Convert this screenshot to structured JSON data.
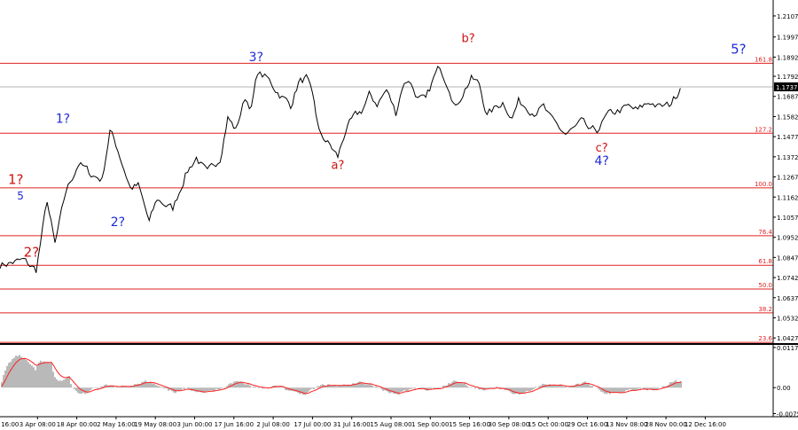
{
  "chart_data": [
    {
      "type": "line",
      "instrument": "",
      "title": "",
      "ylim": [
        1.04,
        1.219
      ],
      "y_ticks": [
        "1.2107",
        "1.1997",
        "1.1892",
        "1.1792",
        "1.1687",
        "1.1582",
        "1.1477",
        "1.1372",
        "1.1267",
        "1.1162",
        "1.1057",
        "1.0952",
        "1.0847",
        "1.0742",
        "1.0637",
        "1.0532",
        "1.0427"
      ],
      "current_price_label": "1.1737",
      "current_price": 1.1737,
      "x_labels": [
        "27 Mar 16:00",
        "3 Apr 08:00",
        "18 Apr 00:00",
        "2 May 16:00",
        "19 May 08:00",
        "3 Jun 00:00",
        "17 Jun 16:00",
        "2 Jul 08:00",
        "17 Jul 00:00",
        "31 Jul 16:00",
        "15 Aug 08:00",
        "1 Sep 00:00",
        "15 Sep 16:00",
        "30 Sep 08:00",
        "15 Oct 00:00",
        "29 Oct 16:00",
        "13 Nov 08:00",
        "28 Nov 00:00",
        "12 Dec 16:00"
      ],
      "fib_levels": [
        {
          "label": "161.8",
          "value": 1.186
        },
        {
          "label": "127.2",
          "value": 1.1495
        },
        {
          "label": "100.0",
          "value": 1.121
        },
        {
          "label": "76.4",
          "value": 1.096
        },
        {
          "label": "61.8",
          "value": 1.0806
        },
        {
          "label": "50.0",
          "value": 1.0682
        },
        {
          "label": "38.2",
          "value": 1.0558
        },
        {
          "label": "23.6",
          "value": 1.0404
        }
      ],
      "price_path": [
        [
          0,
          1.081
        ],
        [
          1.5,
          1.083
        ],
        [
          2.3,
          1.078
        ],
        [
          3,
          1.114
        ],
        [
          3.5,
          1.091
        ],
        [
          4.2,
          1.119
        ],
        [
          5,
          1.134
        ],
        [
          5.8,
          1.128
        ],
        [
          6.5,
          1.1255
        ],
        [
          7,
          1.151
        ],
        [
          7.5,
          1.141
        ],
        [
          8.3,
          1.121
        ],
        [
          8.8,
          1.122
        ],
        [
          9.5,
          1.103
        ],
        [
          10,
          1.115
        ],
        [
          11,
          1.11
        ],
        [
          11.8,
          1.128
        ],
        [
          12.5,
          1.137
        ],
        [
          13.2,
          1.128
        ],
        [
          14,
          1.137
        ],
        [
          14.5,
          1.158
        ],
        [
          15,
          1.151
        ],
        [
          15.6,
          1.168
        ],
        [
          16,
          1.163
        ],
        [
          16.4,
          1.181
        ],
        [
          17,
          1.178
        ],
        [
          17.8,
          1.17
        ],
        [
          18.5,
          1.164
        ],
        [
          19,
          1.176
        ],
        [
          19.5,
          1.178
        ],
        [
          20,
          1.165
        ],
        [
          20.3,
          1.15
        ],
        [
          21,
          1.143
        ],
        [
          21.5,
          1.137
        ],
        [
          22,
          1.151
        ],
        [
          22.5,
          1.157
        ],
        [
          23,
          1.161
        ],
        [
          23.5,
          1.169
        ],
        [
          24,
          1.165
        ],
        [
          24.6,
          1.172
        ],
        [
          25.2,
          1.16
        ],
        [
          25.6,
          1.174
        ],
        [
          26,
          1.178
        ],
        [
          26.6,
          1.168
        ],
        [
          27.1,
          1.166
        ],
        [
          27.6,
          1.178
        ],
        [
          28,
          1.184
        ],
        [
          28.6,
          1.174
        ],
        [
          29,
          1.163
        ],
        [
          29.6,
          1.173
        ],
        [
          30,
          1.178
        ],
        [
          30.5,
          1.175
        ],
        [
          31,
          1.159
        ],
        [
          31.6,
          1.163
        ],
        [
          32,
          1.166
        ],
        [
          32.6,
          1.158
        ],
        [
          33,
          1.166
        ],
        [
          33.6,
          1.163
        ],
        [
          34,
          1.161
        ],
        [
          34.6,
          1.163
        ],
        [
          35,
          1.157
        ],
        [
          35.6,
          1.152
        ],
        [
          36,
          1.149
        ],
        [
          36.6,
          1.152
        ],
        [
          37,
          1.155
        ],
        [
          37.6,
          1.15
        ],
        [
          38,
          1.151
        ],
        [
          38.6,
          1.158
        ],
        [
          39,
          1.16
        ],
        [
          39.6,
          1.162
        ],
        [
          40,
          1.163
        ],
        [
          40.6,
          1.161
        ],
        [
          41,
          1.164
        ],
        [
          41.4,
          1.166
        ],
        [
          42,
          1.163
        ],
        [
          42.6,
          1.164
        ],
        [
          43,
          1.169
        ],
        [
          43.3,
          1.173
        ]
      ],
      "oscillator": {
        "type": "histogram+signal",
        "y_ticks": [
          "0.01174",
          "0.00",
          "-0.00759"
        ],
        "ylim": [
          -0.0085,
          0.0125
        ]
      },
      "annotations": [
        {
          "text": "1?",
          "x": 1.0,
          "y": 1.123,
          "color": "#d01010",
          "size": 15
        },
        {
          "text": "5",
          "x": 1.3,
          "y": 1.115,
          "color": "#1c2ad6",
          "size": 12
        },
        {
          "text": "2?",
          "x": 2.0,
          "y": 1.085,
          "color": "#d01010",
          "size": 15
        },
        {
          "text": "1?",
          "x": 4.0,
          "y": 1.155,
          "color": "#1c2ad6",
          "size": 14
        },
        {
          "text": "2?",
          "x": 7.5,
          "y": 1.101,
          "color": "#1c2ad6",
          "size": 14
        },
        {
          "text": "3?",
          "x": 16.3,
          "y": 1.187,
          "color": "#1c2ad6",
          "size": 14
        },
        {
          "text": "a?",
          "x": 21.5,
          "y": 1.131,
          "color": "#d01010",
          "size": 13
        },
        {
          "text": "b?",
          "x": 29.8,
          "y": 1.197,
          "color": "#d01010",
          "size": 13
        },
        {
          "text": "c?",
          "x": 38.3,
          "y": 1.14,
          "color": "#d01010",
          "size": 13
        },
        {
          "text": "4?",
          "x": 38.3,
          "y": 1.133,
          "color": "#1c2ad6",
          "size": 14
        },
        {
          "text": "5?",
          "x": 47.0,
          "y": 1.191,
          "color": "#1c2ad6",
          "size": 15
        }
      ],
      "colors": {
        "fib": "#e02020",
        "price": "#000000",
        "current_line": "#b4b4b4",
        "histogram": "#b9b9b9",
        "signal": "#ff2020",
        "axis_text": "#000000",
        "fib_text": "#e02020"
      }
    }
  ]
}
